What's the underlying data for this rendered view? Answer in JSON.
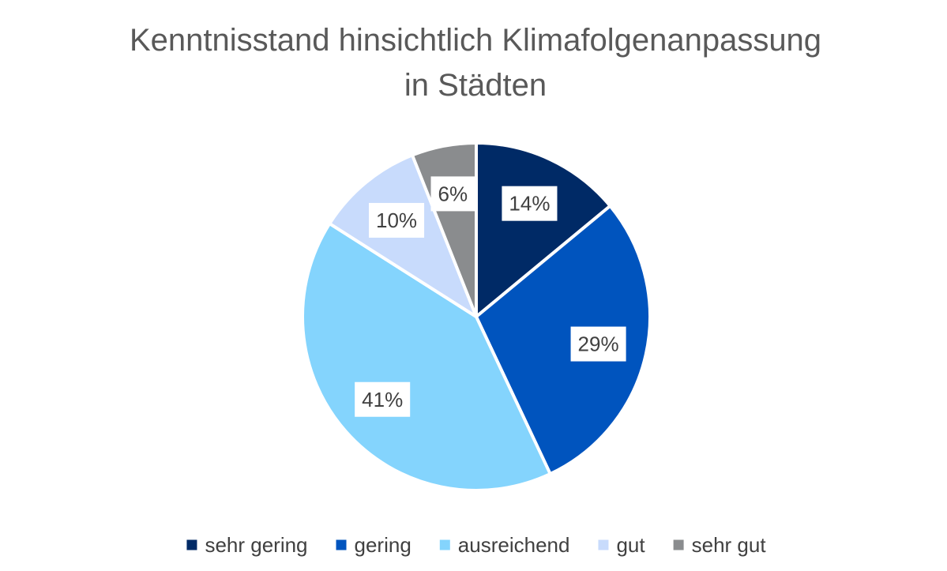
{
  "chart_data": {
    "type": "pie",
    "title": "Kenntnisstand hinsichtlich Klimafolgenanpassung in Städten",
    "title_lines": [
      "Kenntnisstand hinsichtlich Klimafolgenanpassung",
      "in Städten"
    ],
    "categories": [
      "sehr gering",
      "gering",
      "ausreichend",
      "gut",
      "sehr gut"
    ],
    "values": [
      14,
      29,
      41,
      10,
      6
    ],
    "labels": [
      "14%",
      "29%",
      "41%",
      "10%",
      "6%"
    ],
    "colors": [
      "#002A66",
      "#0054BE",
      "#84D4FD",
      "#C8DBFC",
      "#8A8C8E"
    ],
    "legend_position": "bottom",
    "start": "top",
    "direction": "clockwise"
  }
}
